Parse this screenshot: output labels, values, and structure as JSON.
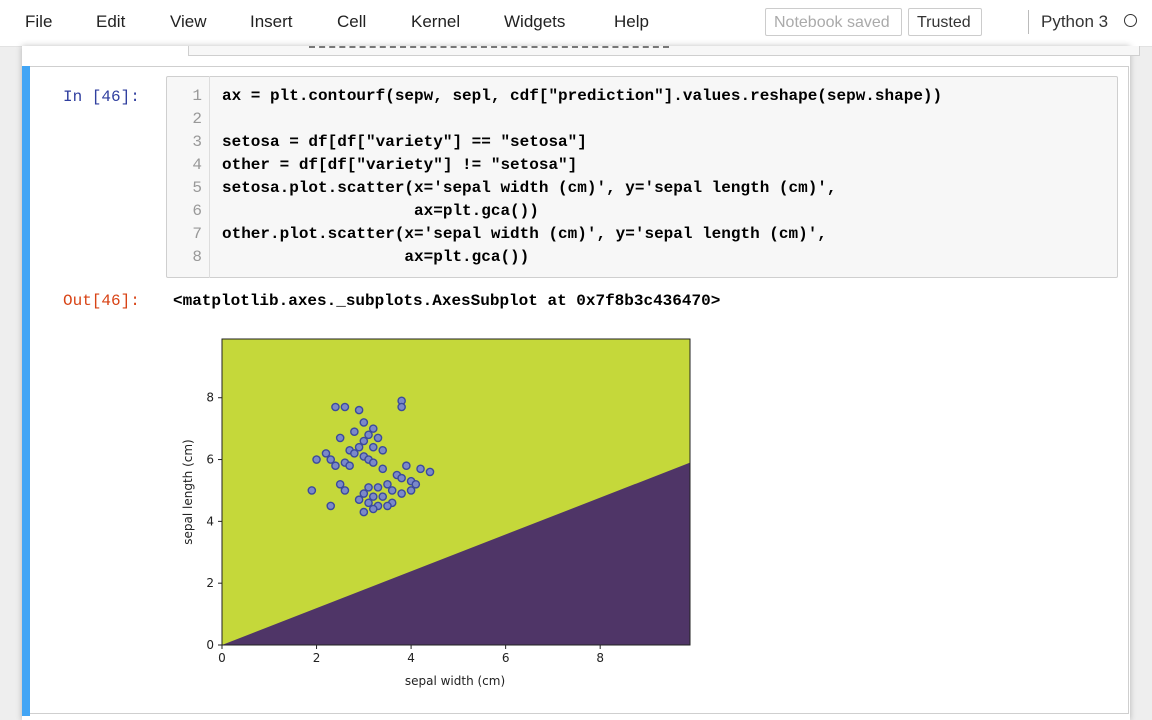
{
  "menubar": {
    "items": [
      "File",
      "Edit",
      "View",
      "Insert",
      "Cell",
      "Kernel",
      "Widgets",
      "Help"
    ],
    "notebook_status": "Notebook saved",
    "trusted": "Trusted",
    "kernel": "Python 3"
  },
  "cell": {
    "in_prompt": "In [46]:",
    "out_prompt": "Out[46]:",
    "line_numbers": [
      "1",
      "2",
      "3",
      "4",
      "5",
      "6",
      "7",
      "8"
    ],
    "code": [
      "ax = plt.contourf(sepw, sepl, cdf[\"prediction\"].values.reshape(sepw.shape))",
      "",
      "setosa = df[df[\"variety\"] == \"setosa\"]",
      "other = df[df[\"variety\"] != \"setosa\"]",
      "setosa.plot.scatter(x='sepal width (cm)', y='sepal length (cm)',",
      "                    ax=plt.gca())",
      "other.plot.scatter(x='sepal width (cm)', y='sepal length (cm)',",
      "                   ax=plt.gca())"
    ],
    "output_text": "<matplotlib.axes._subplots.AxesSubplot at 0x7f8b3c436470>"
  },
  "chart_data": {
    "type": "scatter",
    "xlabel": "sepal width (cm)",
    "ylabel": "sepal length (cm)",
    "xlim": [
      0,
      9.9
    ],
    "ylim": [
      0,
      9.9
    ],
    "xticks": [
      0,
      2,
      4,
      6,
      8
    ],
    "yticks": [
      0,
      2,
      4,
      6,
      8
    ],
    "grid": false,
    "contour": {
      "boundary": [
        [
          0,
          0
        ],
        [
          9.9,
          5.9
        ]
      ],
      "colors": {
        "above": "#c5d83a",
        "below": "#4f3567"
      }
    },
    "point_color": "#7b89c9",
    "point_edge_color": "#3b4a9c",
    "points": [
      [
        2.4,
        7.7
      ],
      [
        2.6,
        7.7
      ],
      [
        2.9,
        7.6
      ],
      [
        3.8,
        7.9
      ],
      [
        3.8,
        7.7
      ],
      [
        3.0,
        7.2
      ],
      [
        3.2,
        7.0
      ],
      [
        2.8,
        6.9
      ],
      [
        3.1,
        6.8
      ],
      [
        2.5,
        6.7
      ],
      [
        3.3,
        6.7
      ],
      [
        3.0,
        6.6
      ],
      [
        2.9,
        6.4
      ],
      [
        3.2,
        6.4
      ],
      [
        2.7,
        6.3
      ],
      [
        3.4,
        6.3
      ],
      [
        2.2,
        6.2
      ],
      [
        2.8,
        6.2
      ],
      [
        3.0,
        6.1
      ],
      [
        2.3,
        6.0
      ],
      [
        3.1,
        6.0
      ],
      [
        2.6,
        5.9
      ],
      [
        3.2,
        5.9
      ],
      [
        2.4,
        5.8
      ],
      [
        2.7,
        5.8
      ],
      [
        3.4,
        5.7
      ],
      [
        2.0,
        6.0
      ],
      [
        3.9,
        5.8
      ],
      [
        4.2,
        5.7
      ],
      [
        4.4,
        5.6
      ],
      [
        3.7,
        5.5
      ],
      [
        3.8,
        5.4
      ],
      [
        4.0,
        5.3
      ],
      [
        4.1,
        5.2
      ],
      [
        3.5,
        5.2
      ],
      [
        3.3,
        5.1
      ],
      [
        3.6,
        5.0
      ],
      [
        3.1,
        5.1
      ],
      [
        3.0,
        4.9
      ],
      [
        3.2,
        4.8
      ],
      [
        3.4,
        4.8
      ],
      [
        2.9,
        4.7
      ],
      [
        3.1,
        4.6
      ],
      [
        3.3,
        4.5
      ],
      [
        3.6,
        4.6
      ],
      [
        3.2,
        4.4
      ],
      [
        3.0,
        4.3
      ],
      [
        3.5,
        4.5
      ],
      [
        1.9,
        5.0
      ],
      [
        2.3,
        4.5
      ],
      [
        2.5,
        5.2
      ],
      [
        2.6,
        5.0
      ],
      [
        4.0,
        5.0
      ],
      [
        3.8,
        4.9
      ]
    ]
  }
}
